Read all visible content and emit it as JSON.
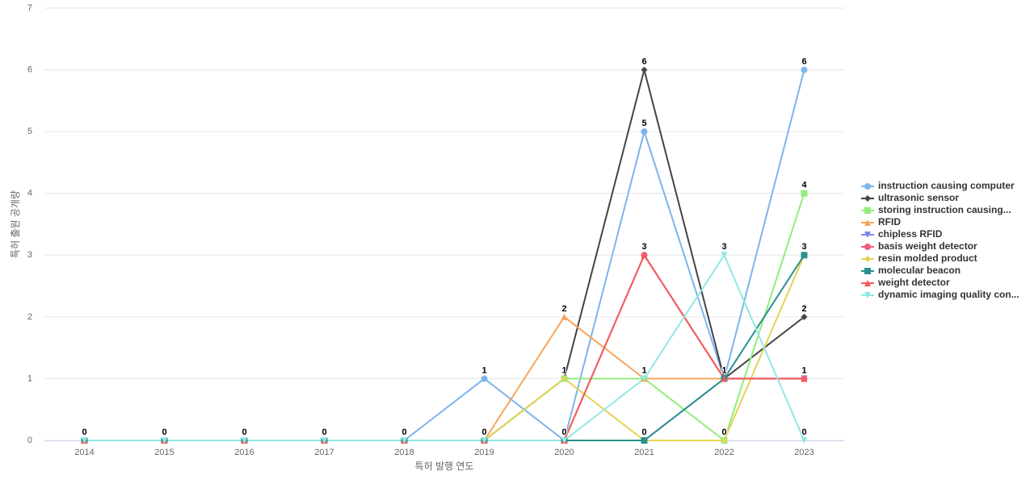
{
  "chart_data": {
    "type": "line",
    "x_label": "특허 발행 연도",
    "y_label": "특허 출원 공개량",
    "categories": [
      "2014",
      "2015",
      "2016",
      "2017",
      "2018",
      "2019",
      "2020",
      "2021",
      "2022",
      "2023"
    ],
    "ylim": [
      0,
      7
    ],
    "yticks": [
      0,
      1,
      2,
      3,
      4,
      5,
      6,
      7
    ],
    "grid": true,
    "legend": "right",
    "series": [
      {
        "name": "instruction causing computer",
        "color": "#7cb5ec",
        "marker": "circle",
        "values": [
          0,
          0,
          0,
          0,
          0,
          1,
          0,
          5,
          1,
          6
        ]
      },
      {
        "name": "ultrasonic sensor",
        "color": "#434348",
        "marker": "diamond",
        "values": [
          0,
          0,
          0,
          0,
          0,
          0,
          1,
          6,
          1,
          2
        ]
      },
      {
        "name": "storing instruction causing...",
        "color": "#90ed7d",
        "marker": "square",
        "values": [
          0,
          0,
          0,
          0,
          0,
          0,
          1,
          1,
          0,
          4
        ]
      },
      {
        "name": "RFID",
        "color": "#f7a35c",
        "marker": "triangle",
        "values": [
          0,
          0,
          0,
          0,
          0,
          0,
          2,
          1,
          1,
          1
        ]
      },
      {
        "name": "chipless RFID",
        "color": "#8085e9",
        "marker": "triangle-down",
        "values": [
          0,
          0,
          0,
          0,
          0,
          0,
          0,
          0,
          1,
          1
        ]
      },
      {
        "name": "basis weight detector",
        "color": "#f15c80",
        "marker": "circle",
        "values": [
          0,
          0,
          0,
          0,
          0,
          0,
          0,
          3,
          1,
          1
        ]
      },
      {
        "name": "resin molded product",
        "color": "#e4d354",
        "marker": "diamond",
        "values": [
          0,
          0,
          0,
          0,
          0,
          0,
          1,
          0,
          0,
          3
        ]
      },
      {
        "name": "molecular beacon",
        "color": "#2b908f",
        "marker": "square",
        "values": [
          0,
          0,
          0,
          0,
          0,
          0,
          0,
          0,
          1,
          3
        ]
      },
      {
        "name": "weight detector",
        "color": "#f45b5b",
        "marker": "triangle",
        "values": [
          0,
          0,
          0,
          0,
          0,
          0,
          0,
          3,
          1,
          1
        ]
      },
      {
        "name": "dynamic imaging quality con...",
        "color": "#91e8e1",
        "marker": "triangle-down",
        "values": [
          0,
          0,
          0,
          0,
          0,
          0,
          0,
          1,
          3,
          0
        ]
      }
    ]
  }
}
